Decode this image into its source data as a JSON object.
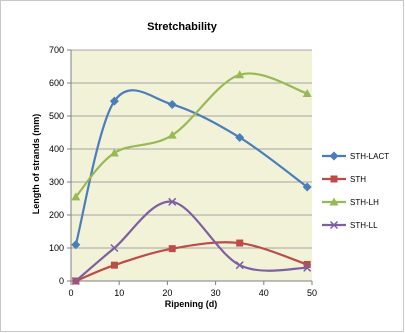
{
  "chart_data": {
    "type": "line",
    "title": "Stretchability",
    "xlabel": "Ripening (d)",
    "ylabel": "Length of strands (mm)",
    "xlim": [
      0,
      50
    ],
    "ylim": [
      0,
      700
    ],
    "xticks": [
      0,
      10,
      20,
      30,
      40,
      50
    ],
    "yticks": [
      0,
      100,
      200,
      300,
      400,
      500,
      600,
      700
    ],
    "grid": "horizontal",
    "legend_position": "right",
    "plot_background": "#f2f2d9",
    "smooth": true,
    "series": [
      {
        "name": "STH-LACT",
        "color": "#4a7ebb",
        "marker": "diamond",
        "x": [
          1,
          9,
          21,
          35,
          49
        ],
        "y": [
          110,
          545,
          535,
          435,
          285
        ]
      },
      {
        "name": "STH",
        "color": "#be4b48",
        "marker": "square",
        "x": [
          1,
          9,
          21,
          35,
          49
        ],
        "y": [
          0,
          48,
          98,
          115,
          50
        ]
      },
      {
        "name": "STH-LH",
        "color": "#98b954",
        "marker": "triangle",
        "x": [
          1,
          9,
          21,
          35,
          49
        ],
        "y": [
          255,
          388,
          442,
          625,
          568
        ]
      },
      {
        "name": "STH-LL",
        "color": "#7d60a0",
        "marker": "x",
        "x": [
          1,
          9,
          21,
          35,
          49
        ],
        "y": [
          0,
          100,
          240,
          48,
          40
        ]
      }
    ]
  }
}
